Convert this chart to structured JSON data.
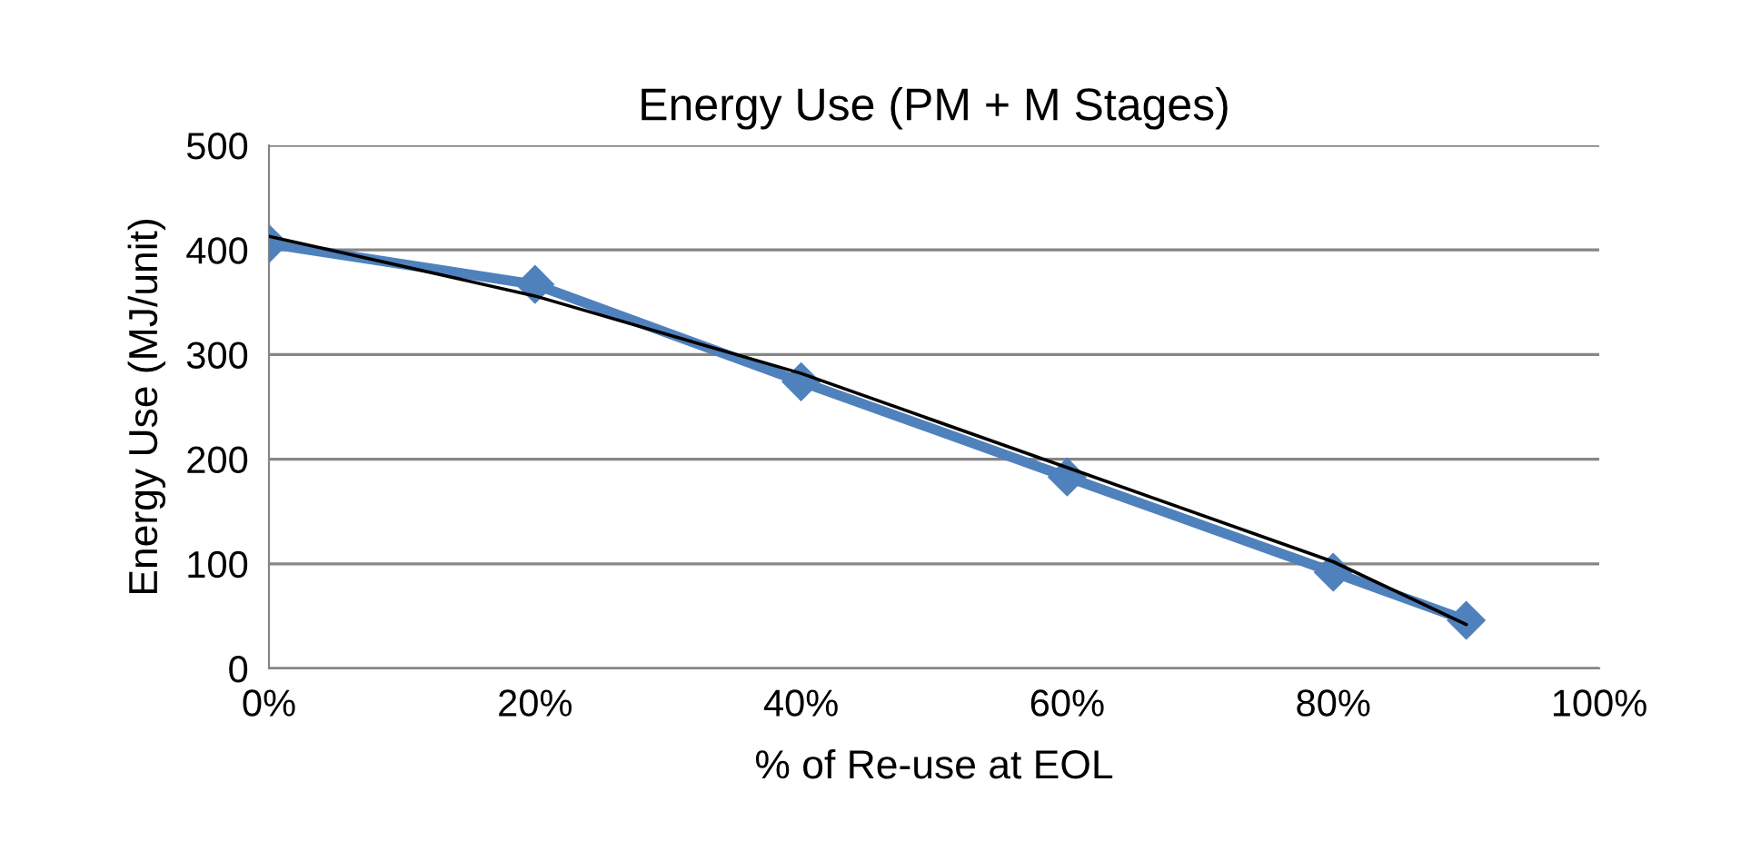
{
  "chart_data": {
    "type": "line",
    "title": "Energy Use (PM + M Stages)",
    "xlabel": "% of Re-use at EOL",
    "ylabel": "Energy Use (MJ/unit)",
    "x": [
      0,
      20,
      40,
      60,
      80,
      90
    ],
    "series": [
      {
        "color": "#4f81bd",
        "values": [
          406,
          367,
          274,
          183,
          92,
          46
        ],
        "marker": "diamond"
      },
      {
        "type": "line",
        "color": "#000000",
        "x": [
          0,
          20,
          40,
          60,
          80,
          90
        ],
        "values": [
          413,
          356,
          282,
          192,
          102,
          42
        ],
        "marker": "none"
      }
    ],
    "xlim": [
      0,
      100
    ],
    "xticks": [
      {
        "value": 0,
        "label": "0%"
      },
      {
        "value": 20,
        "label": "20%"
      },
      {
        "value": 40,
        "label": "40%"
      },
      {
        "value": 60,
        "label": "60%"
      },
      {
        "value": 80,
        "label": "80%"
      },
      {
        "value": 100,
        "label": "100%"
      }
    ],
    "ylim": [
      0,
      500
    ],
    "yticks": [
      0,
      100,
      200,
      300,
      400,
      500
    ],
    "grid": "y"
  }
}
